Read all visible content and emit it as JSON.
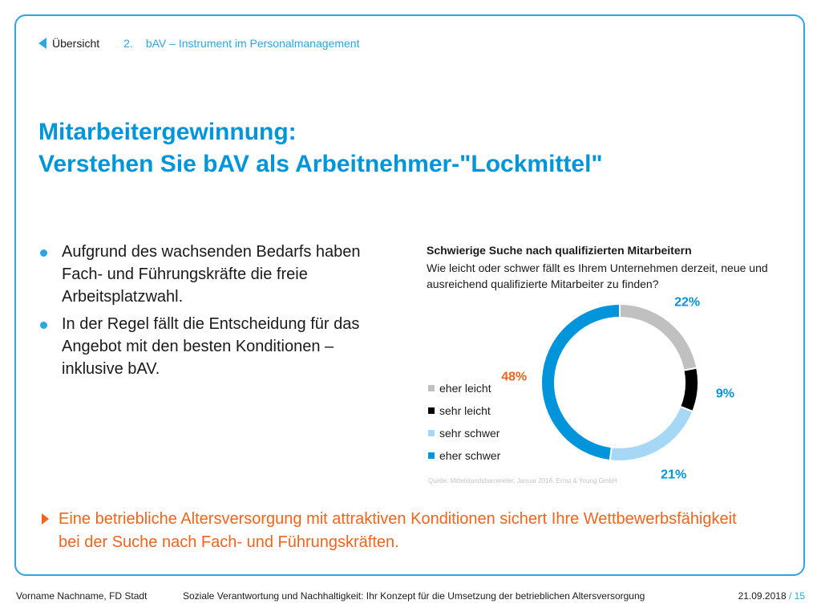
{
  "nav": {
    "back_label": "Übersicht",
    "crumb_number": "2.",
    "crumb_label": "bAV – Instrument im Personalmanagement"
  },
  "title": {
    "line1": "Mitarbeitergewinnung:",
    "line2": "Verstehen Sie bAV als Arbeitnehmer-\"Lockmittel\""
  },
  "bullets": [
    "Aufgrund des wachsenden Bedarfs haben Fach- und Führungskräfte die freie Arbeitsplatzwahl.",
    "In der Regel fällt die Entscheidung für das Angebot mit den besten Konditionen – inklusive bAV."
  ],
  "callout": "Eine betriebliche Altersversorgung mit attraktiven Konditionen sichert Ihre Wettbewerbsfähigkeit bei der Suche nach Fach- und Führungskräften.",
  "source": "Quelle: Mittelstandsbarometer, Januar 2016, Ernst & Young GmbH",
  "footer": {
    "left": "Vorname Nachname, FD Stadt",
    "center": "Soziale Verantwortung und Nachhaltigkeit: Ihr Konzept für die Umsetzung der betrieblichen Altersversorgung",
    "date": "21.09.2018",
    "separator": " / ",
    "page": "15"
  },
  "colors": {
    "accent": "#2ca6e0",
    "title": "#0095db",
    "callout": "#f0641e"
  },
  "chart_data": {
    "type": "pie",
    "variant": "donut",
    "title": "Schwierige Suche nach qualifizierten Mitarbeitern",
    "subtitle": "Wie leicht oder schwer fällt es Ihrem Unternehmen derzeit, neue und ausreichend qualifizierte Mitarbeiter zu finden?",
    "categories": [
      "eher leicht",
      "sehr leicht",
      "sehr schwer",
      "eher schwer"
    ],
    "values": [
      22,
      9,
      21,
      48
    ],
    "data_labels": [
      "22%",
      "9%",
      "21%",
      "48%"
    ],
    "colors": [
      "#c0c0c0",
      "#000000",
      "#a6d8f5",
      "#0095db"
    ],
    "label_colors": [
      "#0095db",
      "#0095db",
      "#0095db",
      "#f0641e"
    ],
    "legend_position": "left"
  }
}
